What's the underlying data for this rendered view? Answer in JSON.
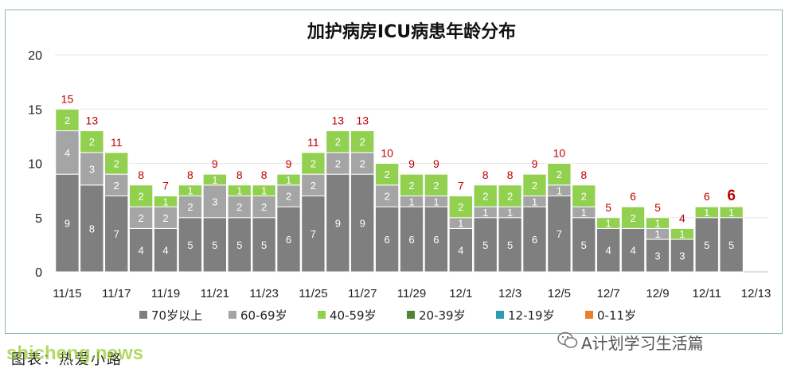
{
  "chart_data": {
    "type": "bar",
    "stacked": true,
    "title": "加护病房ICU病患年龄分布",
    "categories": [
      "11/15",
      "11/16",
      "11/17",
      "11/18",
      "11/19",
      "11/20",
      "11/21",
      "11/22",
      "11/23",
      "11/24",
      "11/25",
      "11/26",
      "11/27",
      "11/28",
      "11/29",
      "11/30",
      "12/1",
      "12/2",
      "12/3",
      "12/4",
      "12/5",
      "12/6",
      "12/7",
      "12/8",
      "12/9",
      "12/10",
      "12/11",
      "12/12",
      "12/13"
    ],
    "x_tick_labels": [
      "11/15",
      "11/17",
      "11/19",
      "11/21",
      "11/23",
      "11/25",
      "11/27",
      "11/29",
      "12/1",
      "12/3",
      "12/5",
      "12/7",
      "12/9",
      "12/11",
      "12/13"
    ],
    "series": [
      {
        "name": "70岁以上",
        "color": "#7f7f7f",
        "values": [
          9,
          8,
          7,
          4,
          4,
          5,
          5,
          5,
          5,
          6,
          7,
          9,
          9,
          6,
          6,
          6,
          4,
          5,
          5,
          6,
          7,
          5,
          4,
          4,
          3,
          3,
          5,
          5,
          null
        ]
      },
      {
        "name": "60-69岁",
        "color": "#a5a5a5",
        "values": [
          4,
          3,
          2,
          2,
          2,
          2,
          3,
          2,
          2,
          2,
          2,
          2,
          2,
          2,
          1,
          1,
          1,
          1,
          1,
          1,
          1,
          1,
          0,
          0,
          1,
          0,
          0,
          0,
          null
        ]
      },
      {
        "name": "40-59岁",
        "color": "#92d050",
        "values": [
          2,
          2,
          2,
          2,
          1,
          1,
          1,
          1,
          1,
          1,
          2,
          2,
          2,
          2,
          2,
          2,
          2,
          2,
          2,
          2,
          2,
          2,
          1,
          2,
          1,
          1,
          1,
          1,
          null
        ]
      },
      {
        "name": "20-39岁",
        "color": "#548235",
        "values": [
          0,
          0,
          0,
          0,
          0,
          0,
          0,
          0,
          0,
          0,
          0,
          0,
          0,
          0,
          0,
          0,
          0,
          0,
          0,
          0,
          0,
          0,
          0,
          0,
          0,
          0,
          0,
          0,
          null
        ]
      },
      {
        "name": "12-19岁",
        "color": "#2e9bb5",
        "values": [
          0,
          0,
          0,
          0,
          0,
          0,
          0,
          0,
          0,
          0,
          0,
          0,
          0,
          0,
          0,
          0,
          0,
          0,
          0,
          0,
          0,
          0,
          0,
          0,
          0,
          0,
          0,
          0,
          null
        ]
      },
      {
        "name": "0-11岁",
        "color": "#ed7d31",
        "values": [
          0,
          0,
          0,
          0,
          0,
          0,
          0,
          0,
          0,
          0,
          0,
          0,
          0,
          0,
          0,
          0,
          0,
          0,
          0,
          0,
          0,
          0,
          0,
          0,
          0,
          0,
          0,
          0,
          null
        ]
      }
    ],
    "segment_labels": {
      "70岁以上": [
        "9",
        "8",
        "7",
        "4",
        "4",
        "5",
        "5",
        "5",
        "5",
        "6",
        "7",
        "9",
        "9",
        "6",
        "6",
        "6",
        "4",
        "5",
        "5",
        "6",
        "7",
        "5",
        "4",
        "4",
        "3",
        "3",
        "5",
        "5",
        ""
      ],
      "60-69岁": [
        "4",
        "3",
        "2",
        "2",
        "2",
        "2",
        "3",
        "2",
        "2",
        "2",
        "2",
        "2",
        "2",
        "2",
        "1",
        "1",
        "1",
        "1",
        "1",
        "1",
        "1",
        "1",
        "",
        "",
        "1",
        "0",
        "",
        "",
        ""
      ],
      "40-59岁": [
        "2",
        "2",
        "2",
        "2",
        "1",
        "1",
        "1",
        "1",
        "1",
        "1",
        "2",
        "2",
        "2",
        "2",
        "2",
        "2",
        "2",
        "2",
        "2",
        "2",
        "2",
        "2",
        "1",
        "2",
        "1",
        "1",
        "1",
        "1",
        ""
      ]
    },
    "totals": [
      15,
      13,
      11,
      8,
      7,
      8,
      9,
      8,
      8,
      9,
      11,
      13,
      13,
      10,
      9,
      9,
      7,
      8,
      8,
      9,
      10,
      8,
      5,
      6,
      5,
      4,
      6,
      6,
      null
    ],
    "ylim": [
      0,
      20
    ],
    "yticks": [
      0,
      5,
      10,
      15,
      20
    ],
    "xlabel": "",
    "ylabel": "",
    "grid": true,
    "legend_position": "bottom",
    "total_label_color": "#c00000"
  },
  "footnote": "图表：热爱小路",
  "watermark": "shicheng.news",
  "brand": "A计划学习生活篇"
}
